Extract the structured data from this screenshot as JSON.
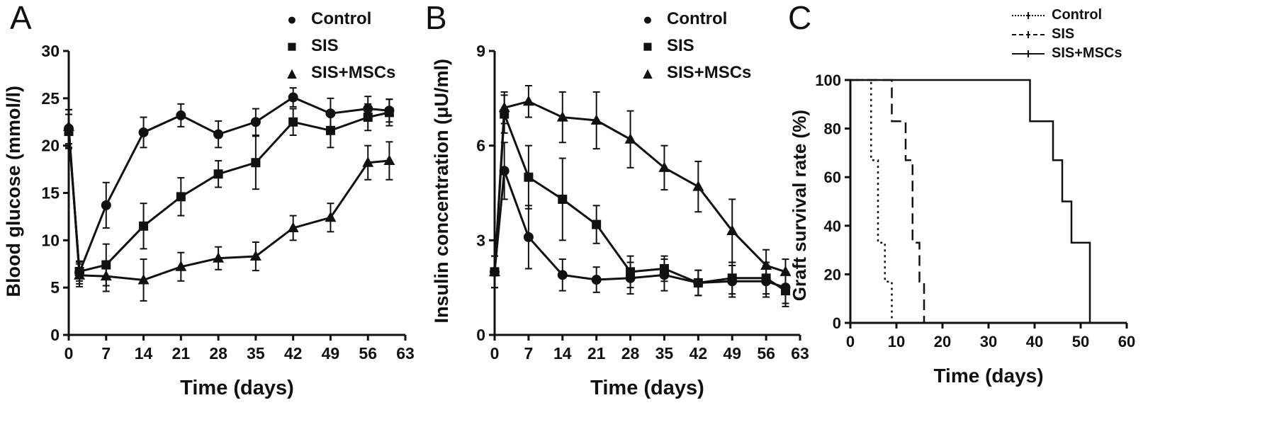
{
  "figure": {
    "ink_color": "#111111",
    "background": "#ffffff"
  },
  "chart_data": [
    {
      "panel_label": "A",
      "type": "line",
      "xlabel": "Time (days)",
      "ylabel": "Blood glucose (mmol/l)",
      "xlim": [
        0,
        63
      ],
      "ylim": [
        0,
        30
      ],
      "xticks": [
        0,
        7,
        14,
        21,
        28,
        35,
        42,
        49,
        56,
        63
      ],
      "yticks": [
        0,
        5,
        10,
        15,
        20,
        25,
        30
      ],
      "x": [
        0,
        2,
        7,
        14,
        21,
        28,
        35,
        42,
        49,
        56,
        60
      ],
      "legend_position": "top-right",
      "grid": false,
      "series": [
        {
          "name": "Control",
          "marker": "circle",
          "glyph": "●",
          "values": [
            21.8,
            6.6,
            13.7,
            21.4,
            23.2,
            21.2,
            22.5,
            25.1,
            23.4,
            23.9,
            23.7
          ],
          "errors": [
            2.0,
            1.2,
            2.4,
            1.6,
            1.2,
            1.4,
            1.4,
            1.0,
            1.6,
            1.3,
            1.2
          ]
        },
        {
          "name": "SIS",
          "marker": "square",
          "glyph": "■",
          "values": [
            21.5,
            6.7,
            7.4,
            11.5,
            14.6,
            17.0,
            18.2,
            22.5,
            21.6,
            23.0,
            23.5
          ],
          "errors": [
            1.8,
            1.0,
            2.2,
            2.4,
            2.0,
            1.4,
            2.8,
            1.4,
            1.8,
            1.4,
            1.4
          ]
        },
        {
          "name": "SIS+MSCs",
          "marker": "triangle",
          "glyph": "▲",
          "values": [
            22.0,
            6.3,
            6.2,
            5.8,
            7.2,
            8.1,
            8.3,
            11.3,
            12.4,
            18.2,
            18.4
          ],
          "errors": [
            1.8,
            1.2,
            1.6,
            2.2,
            1.5,
            1.2,
            1.5,
            1.3,
            1.5,
            1.8,
            2.0
          ]
        }
      ]
    },
    {
      "panel_label": "B",
      "type": "line",
      "xlabel": "Time (days)",
      "ylabel": "Insulin concentration (μU/ml)",
      "xlim": [
        0,
        63
      ],
      "ylim": [
        0,
        9
      ],
      "xticks": [
        0,
        7,
        14,
        21,
        28,
        35,
        42,
        49,
        56,
        63
      ],
      "yticks": [
        0,
        3,
        6,
        9
      ],
      "x": [
        0,
        2,
        7,
        14,
        21,
        28,
        35,
        42,
        49,
        56,
        60
      ],
      "legend_position": "top-right",
      "grid": false,
      "series": [
        {
          "name": "Control",
          "marker": "circle",
          "glyph": "●",
          "values": [
            2.0,
            5.2,
            3.1,
            1.9,
            1.75,
            1.8,
            1.9,
            1.65,
            1.7,
            1.7,
            1.5
          ],
          "errors": [
            0.5,
            0.9,
            1.0,
            0.5,
            0.4,
            0.5,
            0.5,
            0.4,
            0.5,
            0.5,
            0.5
          ]
        },
        {
          "name": "SIS",
          "marker": "square",
          "glyph": "■",
          "values": [
            2.0,
            7.0,
            5.0,
            4.3,
            3.5,
            2.0,
            2.1,
            1.65,
            1.8,
            1.8,
            1.4
          ],
          "errors": [
            0.5,
            0.6,
            1.0,
            1.3,
            0.6,
            0.5,
            0.4,
            0.4,
            0.5,
            0.5,
            0.5
          ]
        },
        {
          "name": "SIS+MSCs",
          "marker": "triangle",
          "glyph": "▲",
          "values": [
            2.0,
            7.2,
            7.4,
            6.9,
            6.8,
            6.2,
            5.3,
            4.7,
            3.3,
            2.2,
            2.0
          ],
          "errors": [
            0.5,
            0.5,
            0.5,
            0.8,
            0.9,
            0.9,
            0.7,
            0.8,
            1.0,
            0.5,
            0.4
          ]
        }
      ]
    },
    {
      "panel_label": "C",
      "type": "step",
      "xlabel": "Time (days)",
      "ylabel": "Graft survival rate (%)",
      "xlim": [
        0,
        60
      ],
      "ylim": [
        0,
        100
      ],
      "xticks": [
        0,
        10,
        20,
        30,
        40,
        50,
        60
      ],
      "yticks": [
        0,
        20,
        40,
        60,
        80,
        100
      ],
      "legend_position": "top-right",
      "grid": false,
      "series": [
        {
          "name": "Control",
          "line_style": "dotted",
          "points": [
            [
              0,
              100
            ],
            [
              4.5,
              100
            ],
            [
              4.5,
              67
            ],
            [
              6,
              67
            ],
            [
              6,
              33
            ],
            [
              7.5,
              33
            ],
            [
              7.5,
              17
            ],
            [
              9,
              17
            ],
            [
              9,
              0
            ]
          ]
        },
        {
          "name": "SIS",
          "line_style": "dashed",
          "points": [
            [
              0,
              100
            ],
            [
              9,
              100
            ],
            [
              9,
              83
            ],
            [
              12,
              83
            ],
            [
              12,
              67
            ],
            [
              13.5,
              67
            ],
            [
              13.5,
              33
            ],
            [
              15,
              33
            ],
            [
              15,
              17
            ],
            [
              16,
              17
            ],
            [
              16,
              0
            ]
          ]
        },
        {
          "name": "SIS+MSCs",
          "line_style": "solid",
          "points": [
            [
              0,
              100
            ],
            [
              39,
              100
            ],
            [
              39,
              83
            ],
            [
              44,
              83
            ],
            [
              44,
              67
            ],
            [
              46,
              67
            ],
            [
              46,
              50
            ],
            [
              48,
              50
            ],
            [
              48,
              33
            ],
            [
              52,
              33
            ],
            [
              52,
              0
            ]
          ]
        }
      ]
    }
  ]
}
